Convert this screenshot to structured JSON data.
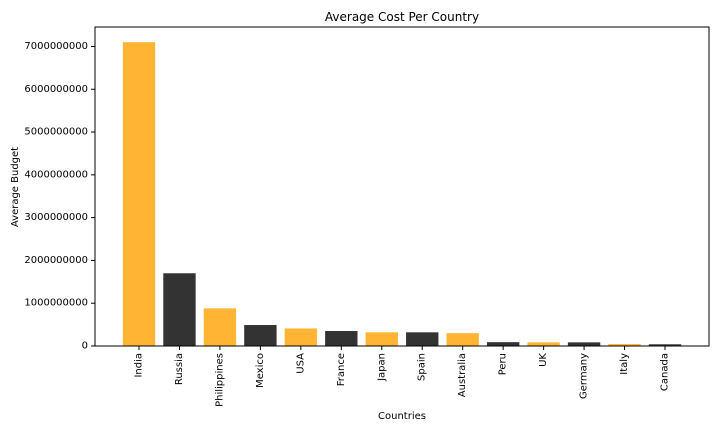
{
  "chart_data": {
    "type": "bar",
    "title": "Average Cost Per Country",
    "xlabel": "Countries",
    "ylabel": "Average Budget",
    "categories": [
      "India",
      "Russia",
      "Philippines",
      "Mexico",
      "USA",
      "France",
      "Japan",
      "Spain",
      "Australia",
      "Peru",
      "UK",
      "Germany",
      "Italy",
      "Canada"
    ],
    "values": [
      7100000000,
      1700000000,
      880000000,
      490000000,
      410000000,
      350000000,
      320000000,
      320000000,
      300000000,
      90000000,
      85000000,
      85000000,
      45000000,
      40000000
    ],
    "bar_colors": [
      "#FFB533",
      "#333333",
      "#FFB533",
      "#333333",
      "#FFB533",
      "#333333",
      "#FFB533",
      "#333333",
      "#FFB533",
      "#333333",
      "#FFB533",
      "#333333",
      "#FFB533",
      "#333333"
    ],
    "yticks": [
      0,
      1000000000,
      2000000000,
      3000000000,
      4000000000,
      5000000000,
      6000000000,
      7000000000
    ],
    "ytick_labels": [
      "0",
      "1000000000",
      "2000000000",
      "3000000000",
      "4000000000",
      "5000000000",
      "6000000000",
      "7000000000"
    ],
    "ylim": [
      0,
      7455000000
    ],
    "grid": false,
    "legend": "none"
  }
}
